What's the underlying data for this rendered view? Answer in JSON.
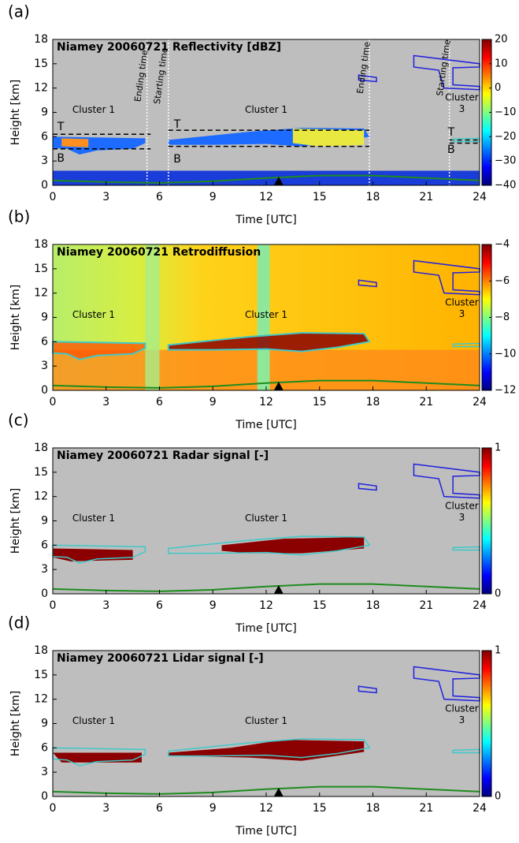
{
  "chart_data": [
    {
      "type": "heatmap",
      "panel_label": "(a)",
      "title": "Niamey 20060721 Reflectivity [dBZ]",
      "x_label": "Time [UTC]",
      "y_label": "Height [km]",
      "xlim": [
        0,
        24
      ],
      "xticks": [
        0,
        3,
        6,
        9,
        12,
        15,
        18,
        21,
        24
      ],
      "ylim": [
        0,
        18
      ],
      "yticks": [
        0,
        3,
        6,
        9,
        12,
        15,
        18
      ],
      "colorbar": {
        "lim": [
          -40,
          20
        ],
        "ticks": [
          {
            "value": -40,
            "label": "−40"
          },
          {
            "value": -30,
            "label": "−30"
          },
          {
            "value": -20,
            "label": "−20"
          },
          {
            "value": -10,
            "label": "−10"
          },
          0,
          10,
          20
        ]
      },
      "annotations": [
        "Cluster 1",
        "Cluster 1",
        "Cluster",
        "3",
        "T",
        "B",
        "T",
        "B",
        "T",
        "B",
        "Ending time",
        "Starting time",
        "Ending time",
        "Starting time"
      ]
    },
    {
      "type": "heatmap",
      "panel_label": "(b)",
      "title": "Niamey 20060721 Retrodiffusion",
      "x_label": "Time [UTC]",
      "y_label": "Height [km]",
      "xlim": [
        0,
        24
      ],
      "xticks": [
        0,
        3,
        6,
        9,
        12,
        15,
        18,
        21,
        24
      ],
      "ylim": [
        0,
        18
      ],
      "yticks": [
        0,
        3,
        6,
        9,
        12,
        15,
        18
      ],
      "colorbar": {
        "lim": [
          -12,
          -4
        ],
        "ticks": [
          {
            "value": -12,
            "label": "−12"
          },
          {
            "value": -10,
            "label": "−10"
          },
          {
            "value": -8,
            "label": "−8"
          },
          {
            "value": -6,
            "label": "−6"
          },
          {
            "value": -4,
            "label": "−4"
          }
        ]
      },
      "annotations": [
        "Cluster 1",
        "Cluster 1",
        "Cluster",
        "3"
      ]
    },
    {
      "type": "heatmap",
      "panel_label": "(c)",
      "title": "Niamey 20060721 Radar signal [-]",
      "x_label": "Time [UTC]",
      "y_label": "Height [km]",
      "xlim": [
        0,
        24
      ],
      "xticks": [
        0,
        3,
        6,
        9,
        12,
        15,
        18,
        21,
        24
      ],
      "ylim": [
        0,
        18
      ],
      "yticks": [
        0,
        3,
        6,
        9,
        12,
        15,
        18
      ],
      "colorbar": {
        "lim": [
          0,
          1
        ],
        "ticks": [
          0,
          1
        ]
      },
      "annotations": [
        "Cluster 1",
        "Cluster 1",
        "Cluster",
        "3"
      ]
    },
    {
      "type": "heatmap",
      "panel_label": "(d)",
      "title": "Niamey 20060721 Lidar signal [-]",
      "x_label": "Time [UTC]",
      "y_label": "Height [km]",
      "xlim": [
        0,
        24
      ],
      "xticks": [
        0,
        3,
        6,
        9,
        12,
        15,
        18,
        21,
        24
      ],
      "ylim": [
        0,
        18
      ],
      "yticks": [
        0,
        3,
        6,
        9,
        12,
        15,
        18
      ],
      "colorbar": {
        "lim": [
          0,
          1
        ],
        "ticks": [
          0,
          1
        ]
      },
      "annotations": [
        "Cluster 1",
        "Cluster 1",
        "Cluster",
        "3"
      ]
    }
  ]
}
